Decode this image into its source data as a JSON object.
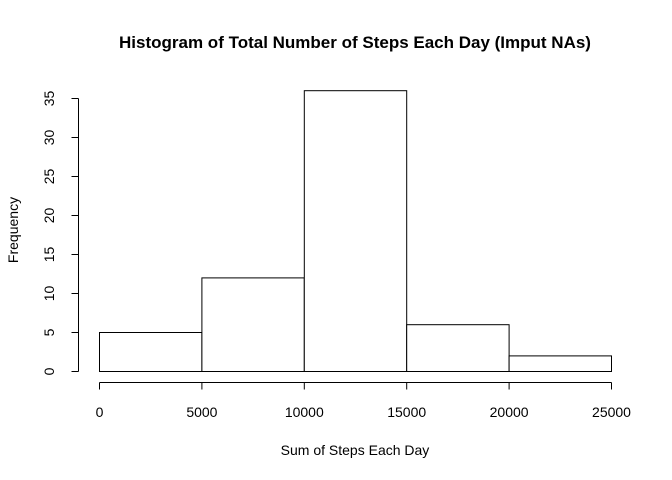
{
  "chart_data": {
    "type": "bar",
    "title": "Histogram of Total Number of Steps Each Day (Imput NAs)",
    "xlabel": "Sum of Steps Each Day",
    "ylabel": "Frequency",
    "bins": [
      {
        "from": 0,
        "to": 5000,
        "value": 5
      },
      {
        "from": 5000,
        "to": 10000,
        "value": 12
      },
      {
        "from": 10000,
        "to": 15000,
        "value": 36
      },
      {
        "from": 15000,
        "to": 20000,
        "value": 6
      },
      {
        "from": 20000,
        "to": 25000,
        "value": 2
      }
    ],
    "xlim": [
      0,
      25000
    ],
    "ylim": [
      0,
      36
    ],
    "x_ticks": [
      0,
      5000,
      10000,
      15000,
      20000,
      25000
    ],
    "x_tick_labels": [
      "0",
      "5000",
      "10000",
      "15000",
      "20000",
      "25000"
    ],
    "y_ticks": [
      0,
      5,
      10,
      15,
      20,
      25,
      30,
      35
    ],
    "y_tick_labels": [
      "0",
      "5",
      "10",
      "15",
      "20",
      "25",
      "30",
      "35"
    ],
    "grid": false,
    "colors": {
      "bar_fill": "#ffffff",
      "bar_stroke": "#000000",
      "axis": "#000000"
    }
  }
}
